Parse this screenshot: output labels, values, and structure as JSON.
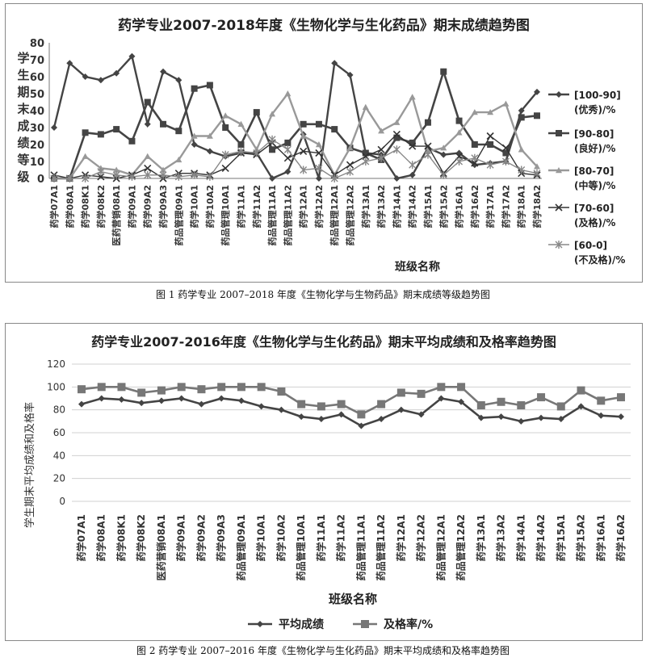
{
  "figure1": {
    "caption": "图 1  药学专业 2007–2018 年度《生物化学与生物药品》期末成绩等级趋势图",
    "chart_data": {
      "type": "line",
      "title": "药学专业2007-2018年度《生物化学与生化药品》期末成绩趋势图",
      "ylabel": "学生期末成绩等级",
      "xlabel": "班级名称",
      "ylim": [
        0,
        80
      ],
      "yticks": [
        0,
        10,
        20,
        30,
        40,
        50,
        60,
        70,
        80
      ],
      "legend_position": "right",
      "categories": [
        "药学07A1",
        "药学08A1",
        "药学08K1",
        "药学08K2",
        "医药营销08A1",
        "药学09A1",
        "药学09A2",
        "药学09A3",
        "药品管理09A1",
        "药学10A1",
        "药学10A2",
        "药品管理10A1",
        "药学11A1",
        "药学11A2",
        "药品管理11A1",
        "药品管理11A2",
        "药学12A1",
        "药学12A2",
        "药品管理12A1",
        "药品管理12A2",
        "药学13A1",
        "药学13A2",
        "药学14A1",
        "药学14A2",
        "药学15A1",
        "药学15A2",
        "药学16A1",
        "药学16A2",
        "药学17A1",
        "药学17A2",
        "药学18A1",
        "药学18A2"
      ],
      "series": [
        {
          "name": "[100-90](优秀)/%",
          "marker": "diamond",
          "values": [
            30,
            68,
            60,
            58,
            62,
            72,
            32,
            63,
            58,
            20,
            16,
            13,
            15,
            15,
            0,
            4,
            26,
            0,
            68,
            61,
            15,
            14,
            0,
            2,
            18,
            14,
            15,
            8,
            9,
            10,
            40,
            51
          ]
        },
        {
          "name": "[90-80](良好)/%",
          "marker": "square",
          "values": [
            0,
            0,
            27,
            26,
            29,
            22,
            45,
            32,
            28,
            53,
            55,
            30,
            20,
            39,
            17,
            21,
            32,
            32,
            29,
            18,
            15,
            11,
            24,
            21,
            33,
            63,
            34,
            20,
            20,
            15,
            36,
            37
          ]
        },
        {
          "name": "[80-70] (中等)/%",
          "marker": "triangle",
          "values": [
            0,
            0,
            13,
            6,
            5,
            2,
            13,
            5,
            11,
            25,
            25,
            37,
            32,
            17,
            38,
            50,
            25,
            20,
            2,
            18,
            42,
            28,
            33,
            48,
            16,
            18,
            27,
            39,
            39,
            44,
            17,
            7
          ]
        },
        {
          "name": "[70-60] (及格)/%",
          "marker": "x",
          "values": [
            2,
            0,
            2,
            1,
            0,
            2,
            6,
            0,
            3,
            3,
            2,
            6,
            15,
            14,
            21,
            12,
            16,
            15,
            2,
            8,
            13,
            17,
            26,
            19,
            19,
            3,
            13,
            9,
            25,
            18,
            3,
            2
          ]
        },
        {
          "name": "[60-0](不及格)/%",
          "marker": "asterisk",
          "values": [
            0,
            0,
            0,
            4,
            2,
            1,
            2,
            2,
            1,
            2,
            1,
            14,
            16,
            15,
            23,
            17,
            5,
            6,
            0,
            4,
            10,
            12,
            17,
            8,
            14,
            2,
            10,
            12,
            8,
            10,
            5,
            3
          ]
        }
      ]
    }
  },
  "figure2": {
    "caption": "图 2  药学专业 2007–2016 年度《生物化学与生化药品》期末平均成绩和及格率趋势图",
    "chart_data": {
      "type": "line",
      "title": "药学专业2007-2016年度《生物化学与生化药品》期末平均成绩和及格率趋势图",
      "ylabel": "学生期末平均成绩和及格率",
      "xlabel": "班级名称",
      "ylim": [
        0,
        120
      ],
      "yticks": [
        0,
        20,
        40,
        60,
        80,
        100,
        120
      ],
      "grid": true,
      "legend_position": "bottom",
      "categories": [
        "药学07A1",
        "药学08A1",
        "药学08K1",
        "药学08K2",
        "医药营销08A1",
        "药学09A1",
        "药学09A2",
        "药学09A3",
        "药品管理09A1",
        "药学10A1",
        "药学10A2",
        "药品管理10A1",
        "药学11A1",
        "药学11A2",
        "药品管理11A1",
        "药品管理11A2",
        "药学12A1",
        "药学12A2",
        "药品管理12A1",
        "药品管理12A2",
        "药学13A1",
        "药学13A2",
        "药学14A1",
        "药学14A2",
        "药学15A1",
        "药学15A2",
        "药学16A1",
        "药学16A2"
      ],
      "series": [
        {
          "name": "平均成绩",
          "marker": "diamond",
          "values": [
            85,
            90,
            89,
            86,
            88,
            90,
            85,
            90,
            88,
            83,
            80,
            74,
            72,
            76,
            66,
            72,
            80,
            76,
            90,
            87,
            73,
            74,
            70,
            73,
            72,
            83,
            75,
            74
          ]
        },
        {
          "name": "及格率/%",
          "marker": "square",
          "values": [
            98,
            100,
            100,
            95,
            97,
            100,
            98,
            100,
            100,
            100,
            96,
            85,
            83,
            85,
            76,
            85,
            95,
            94,
            100,
            100,
            84,
            87,
            84,
            91,
            83,
            97,
            88,
            91
          ]
        }
      ]
    }
  }
}
